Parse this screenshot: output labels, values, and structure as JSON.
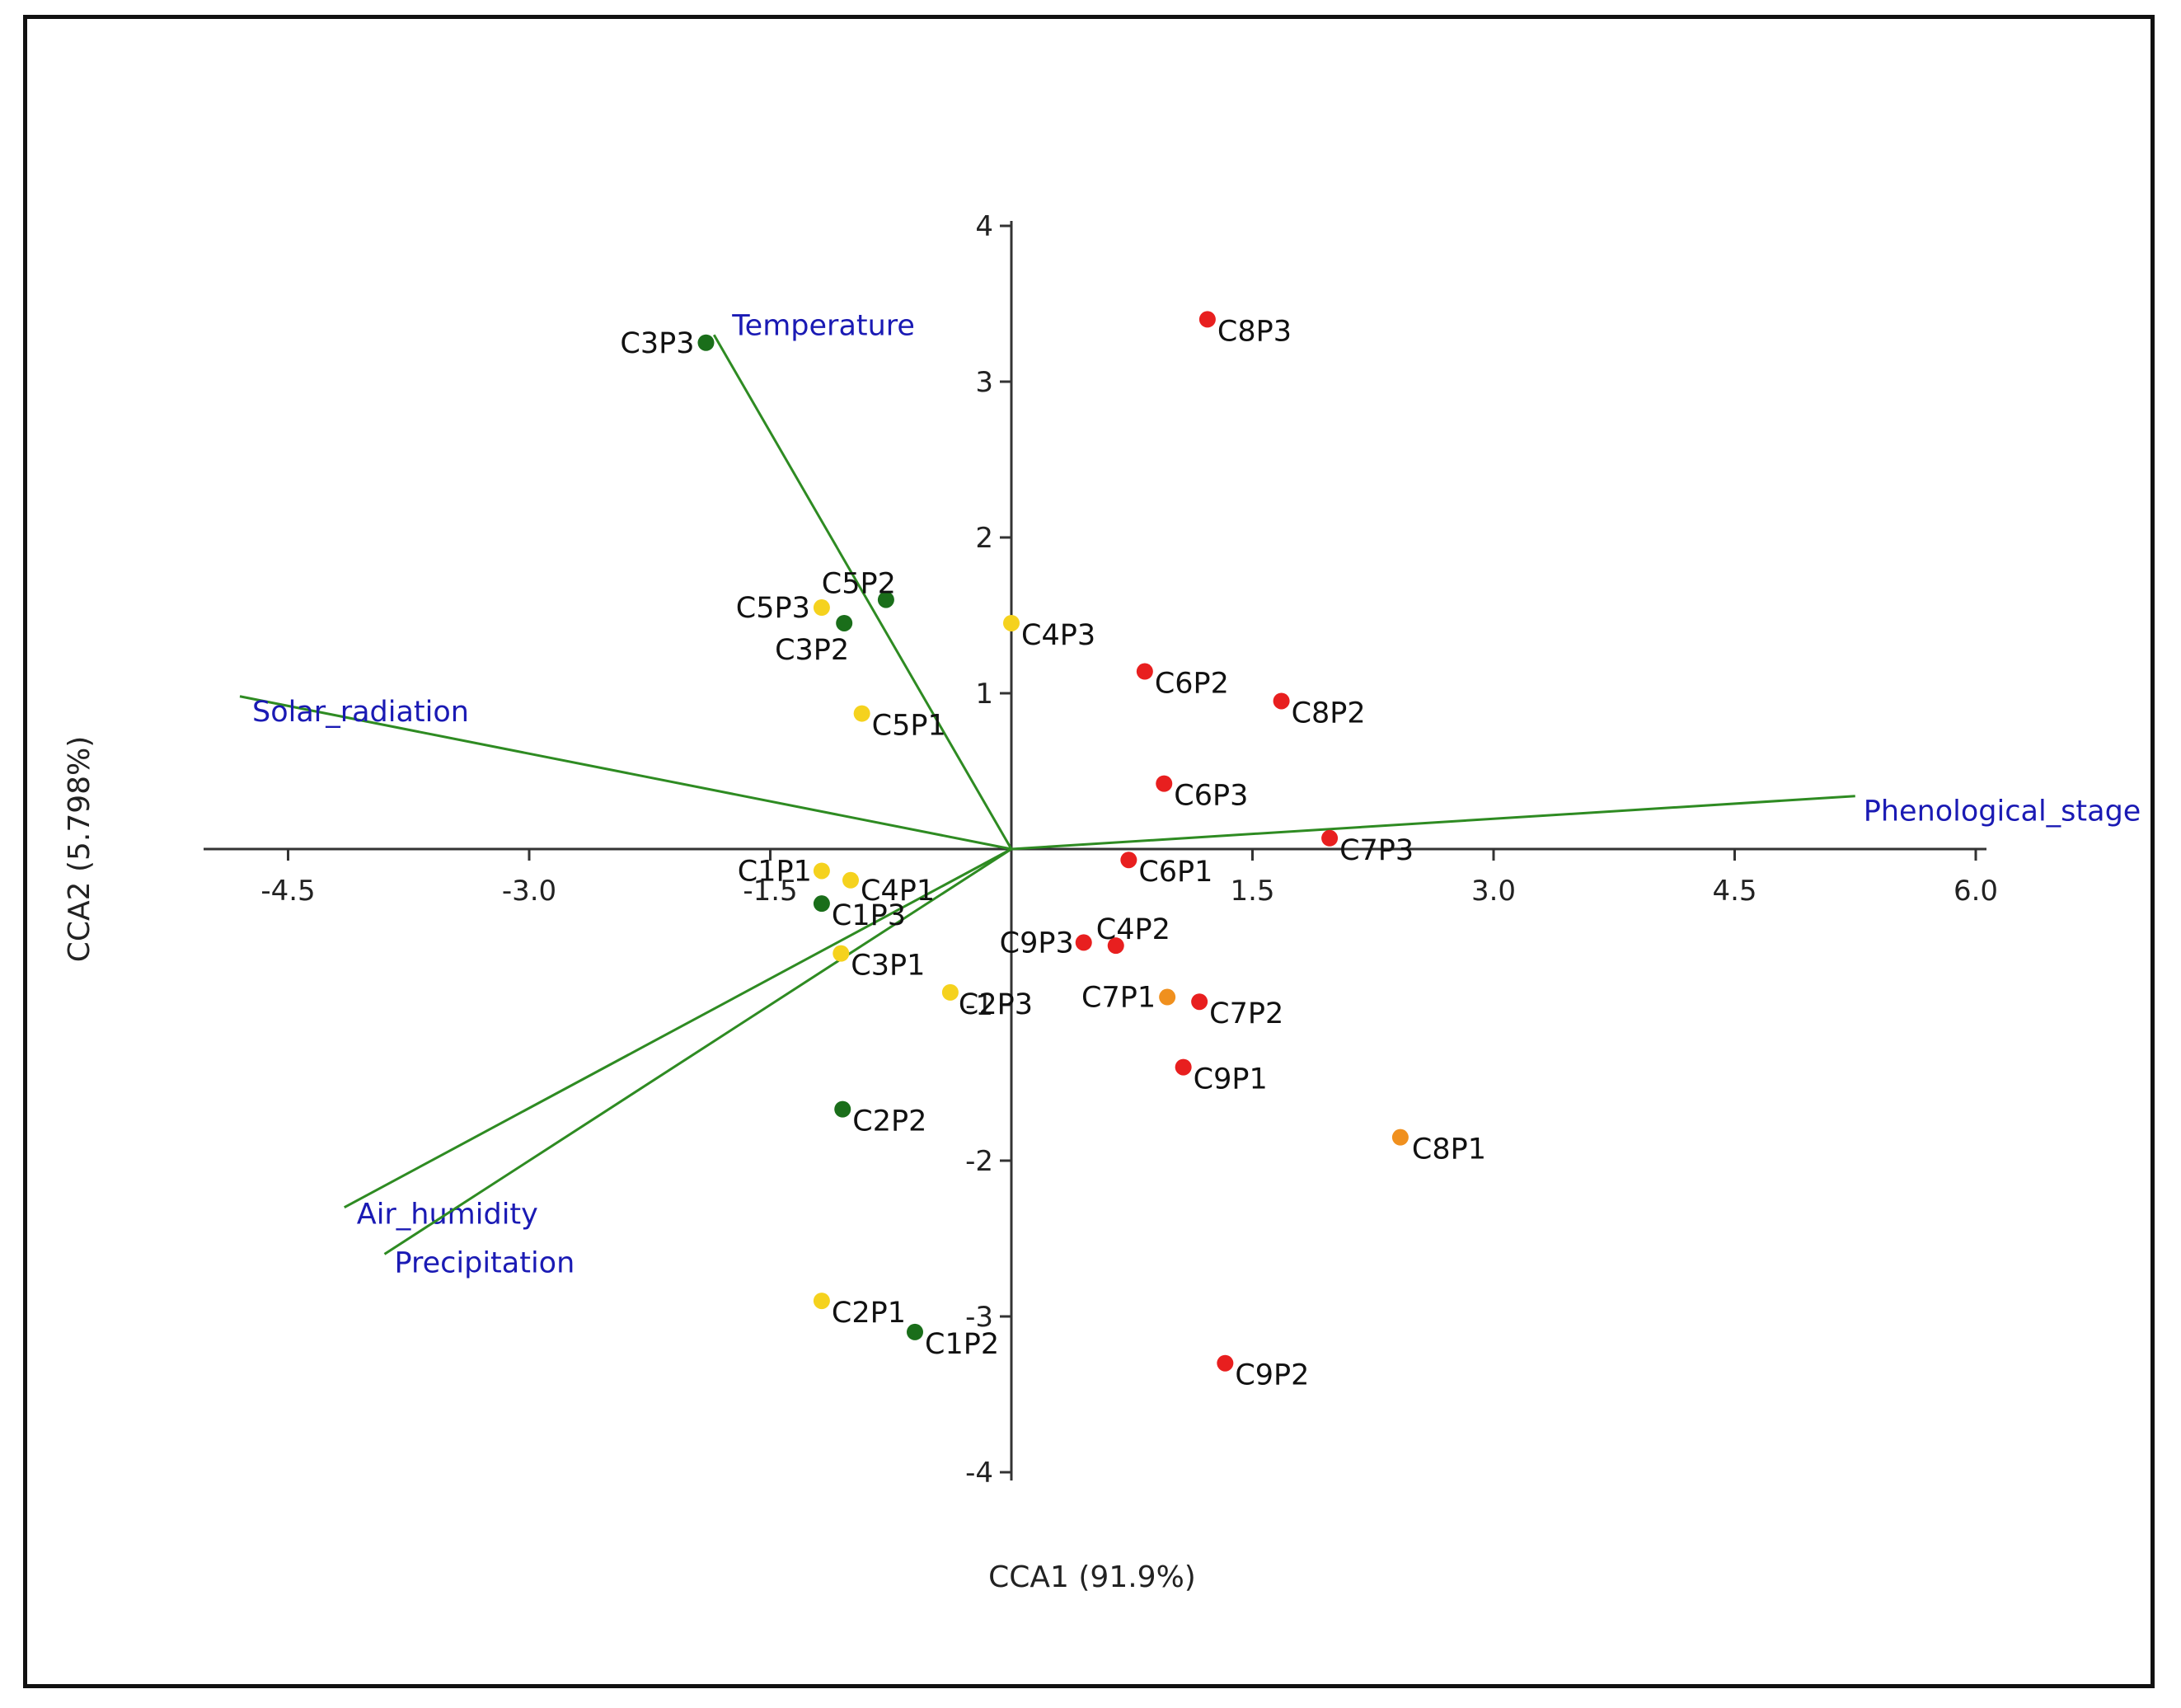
{
  "chart_data": {
    "type": "scatter",
    "title": "",
    "xlabel": "CCA1 (91.9%)",
    "ylabel": "CCA2 (5.798%)",
    "xlim": [
      -5.0,
      6.0
    ],
    "ylim": [
      -4.2,
      4.2
    ],
    "x_ticks": [
      {
        "value": -4.5,
        "label": "-4.5"
      },
      {
        "value": -3.0,
        "label": "-3.0"
      },
      {
        "value": -1.5,
        "label": "-1.5"
      },
      {
        "value": 1.5,
        "label": "1.5"
      },
      {
        "value": 3.0,
        "label": "3.0"
      },
      {
        "value": 4.5,
        "label": "4.5"
      },
      {
        "value": 6.0,
        "label": "6.0"
      }
    ],
    "y_ticks": [
      {
        "value": 4,
        "label": "4"
      },
      {
        "value": 3,
        "label": "3"
      },
      {
        "value": 2,
        "label": "2"
      },
      {
        "value": 1,
        "label": "1"
      },
      {
        "value": -1,
        "label": "-1"
      },
      {
        "value": -2,
        "label": "-2"
      },
      {
        "value": -3,
        "label": "-3"
      },
      {
        "value": -4,
        "label": "-4"
      }
    ],
    "grid": false,
    "colors": {
      "green": "#1a6e1a",
      "yellow": "#f5d21e",
      "orange": "#f0901e",
      "red": "#e81f1f",
      "vector_line": "#2e8b22",
      "vector_label": "#1a1ab4",
      "axis": "#333333"
    },
    "vectors": [
      {
        "name": "Temperature",
        "x": -1.85,
        "y": 3.3
      },
      {
        "name": "Solar_radiation",
        "x": -4.8,
        "y": 0.98
      },
      {
        "name": "Phenological_stage",
        "x": 5.25,
        "y": 0.34
      },
      {
        "name": "Air_humidity",
        "x": -4.15,
        "y": -2.3
      },
      {
        "name": "Precipitation",
        "x": -3.9,
        "y": -2.6
      }
    ],
    "points": [
      {
        "label": "C3P3",
        "x": -1.9,
        "y": 3.25,
        "color": "green"
      },
      {
        "label": "C8P3",
        "x": 1.22,
        "y": 3.4,
        "color": "red"
      },
      {
        "label": "C5P2",
        "x": -0.78,
        "y": 1.6,
        "color": "green"
      },
      {
        "label": "C5P3",
        "x": -1.18,
        "y": 1.55,
        "color": "yellow"
      },
      {
        "label": "C3P2",
        "x": -1.04,
        "y": 1.45,
        "color": "green"
      },
      {
        "label": "C4P3",
        "x": 0.0,
        "y": 1.45,
        "color": "yellow"
      },
      {
        "label": "C6P2",
        "x": 0.83,
        "y": 1.14,
        "color": "red"
      },
      {
        "label": "C8P2",
        "x": 1.68,
        "y": 0.95,
        "color": "red"
      },
      {
        "label": "C5P1",
        "x": -0.93,
        "y": 0.87,
        "color": "yellow"
      },
      {
        "label": "C6P3",
        "x": 0.95,
        "y": 0.42,
        "color": "red"
      },
      {
        "label": "C7P3",
        "x": 1.98,
        "y": 0.07,
        "color": "red"
      },
      {
        "label": "C6P1",
        "x": 0.73,
        "y": -0.07,
        "color": "red"
      },
      {
        "label": "C1P1",
        "x": -1.18,
        "y": -0.14,
        "color": "yellow"
      },
      {
        "label": "C4P1",
        "x": -1.0,
        "y": -0.2,
        "color": "yellow"
      },
      {
        "label": "C1P3",
        "x": -1.18,
        "y": -0.35,
        "color": "green"
      },
      {
        "label": "C9P3",
        "x": 0.45,
        "y": -0.6,
        "color": "red"
      },
      {
        "label": "C4P2",
        "x": 0.65,
        "y": -0.62,
        "color": "red"
      },
      {
        "label": "C3P1",
        "x": -1.06,
        "y": -0.67,
        "color": "yellow"
      },
      {
        "label": "C2P3",
        "x": -0.38,
        "y": -0.92,
        "color": "yellow"
      },
      {
        "label": "C7P1",
        "x": 0.97,
        "y": -0.95,
        "color": "orange"
      },
      {
        "label": "C7P2",
        "x": 1.17,
        "y": -0.98,
        "color": "red"
      },
      {
        "label": "C9P1",
        "x": 1.07,
        "y": -1.4,
        "color": "red"
      },
      {
        "label": "C2P2",
        "x": -1.05,
        "y": -1.67,
        "color": "green"
      },
      {
        "label": "C8P1",
        "x": 2.42,
        "y": -1.85,
        "color": "orange"
      },
      {
        "label": "C2P1",
        "x": -1.18,
        "y": -2.9,
        "color": "yellow"
      },
      {
        "label": "C1P2",
        "x": -0.6,
        "y": -3.1,
        "color": "green"
      },
      {
        "label": "C9P2",
        "x": 1.33,
        "y": -3.3,
        "color": "red"
      }
    ]
  }
}
